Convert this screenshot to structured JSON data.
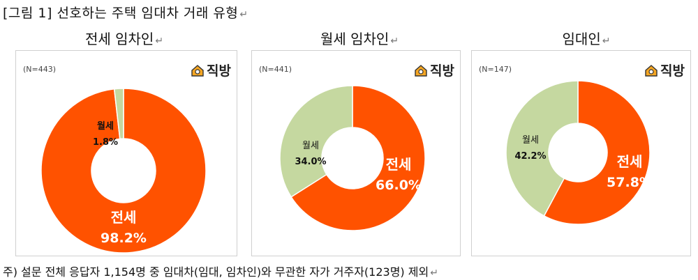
{
  "figure_title": "[그림 1] 선호하는 주택 임대차 거래 유형",
  "return_mark": "↵",
  "note": "주) 설문 전체 응답자 1,154명 중 임대차(임대, 임차인)와 무관한 자가 거주자(123명) 제외",
  "logo_text": "직방",
  "colors": {
    "jeonse": "#FF5200",
    "wolse": "#C5D8A0"
  },
  "chart_data": [
    {
      "type": "pie",
      "title": "전세 임차인",
      "n_label": "(N=443)",
      "slices": [
        {
          "name": "전세",
          "value": 98.2,
          "label": "98.2%"
        },
        {
          "name": "월세",
          "value": 1.8,
          "label": "1.8%"
        }
      ]
    },
    {
      "type": "pie",
      "title": "월세 임차인",
      "n_label": "(N=441)",
      "slices": [
        {
          "name": "전세",
          "value": 66.0,
          "label": "66.0%"
        },
        {
          "name": "월세",
          "value": 34.0,
          "label": "34.0%"
        }
      ]
    },
    {
      "type": "pie",
      "title": "임대인",
      "n_label": "(N=147)",
      "slices": [
        {
          "name": "전세",
          "value": 57.8,
          "label": "57.8%"
        },
        {
          "name": "월세",
          "value": 42.2,
          "label": "42.2%"
        }
      ]
    }
  ]
}
